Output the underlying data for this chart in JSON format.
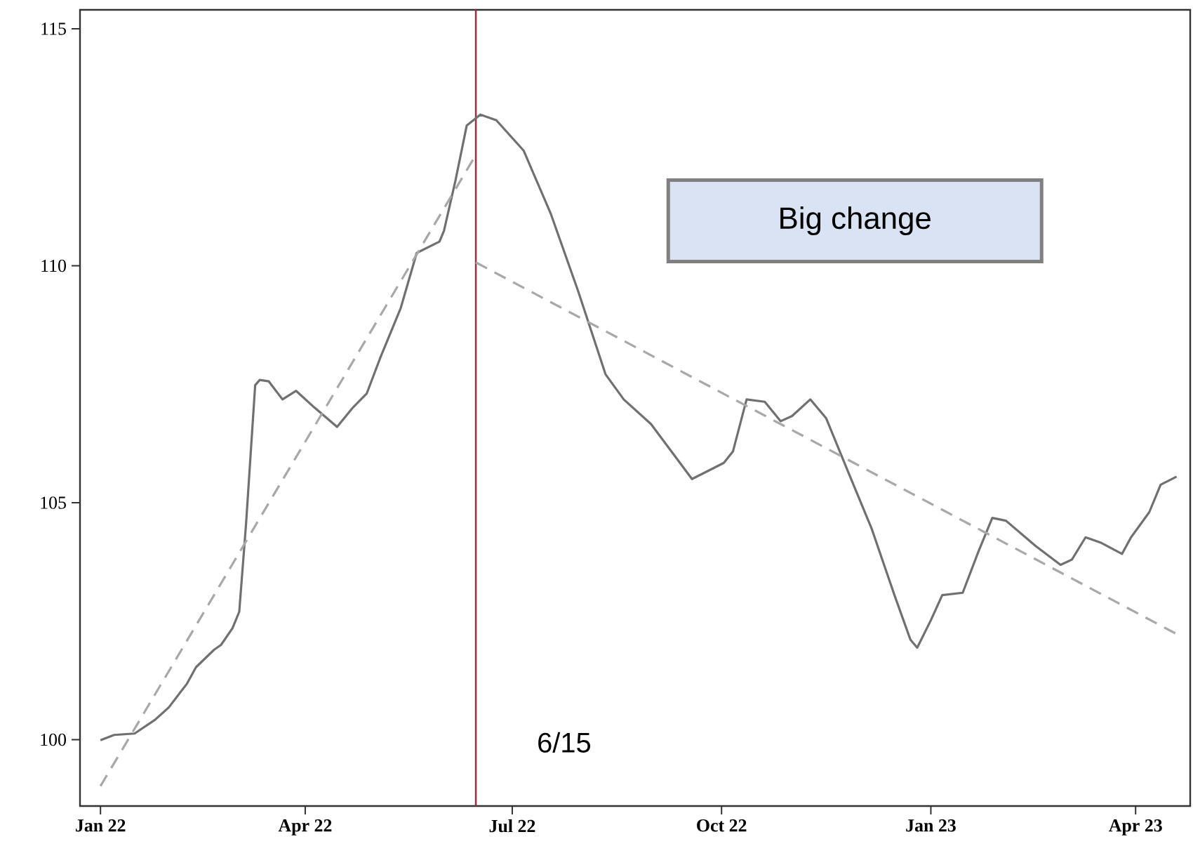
{
  "chart_data": {
    "type": "line",
    "xlim": [
      "2021-12-23",
      "2023-04-25"
    ],
    "ylim": [
      98.6,
      115.4
    ],
    "xticks": [
      {
        "value": "2022-01-01",
        "label": "Jan 22"
      },
      {
        "value": "2022-04-01",
        "label": "Apr 22"
      },
      {
        "value": "2022-07-01",
        "label": "Jul 22"
      },
      {
        "value": "2022-10-01",
        "label": "Oct 22"
      },
      {
        "value": "2023-01-01",
        "label": "Jan 23"
      },
      {
        "value": "2023-04-01",
        "label": "Apr 23"
      }
    ],
    "yticks": [
      100,
      105,
      110,
      115
    ],
    "series": [
      {
        "color": "#707070",
        "line_style": "solid",
        "x": [
          "2022-01-01",
          "2022-01-07",
          "2022-01-16",
          "2022-01-25",
          "2022-01-31",
          "2022-02-08",
          "2022-02-12",
          "2022-02-20",
          "2022-02-23",
          "2022-02-28",
          "2022-03-03",
          "2022-03-06",
          "2022-03-10",
          "2022-03-12",
          "2022-03-16",
          "2022-03-22",
          "2022-03-28",
          "2022-04-05",
          "2022-04-15",
          "2022-04-22",
          "2022-04-28",
          "2022-05-04",
          "2022-05-13",
          "2022-05-20",
          "2022-05-30",
          "2022-06-01",
          "2022-06-06",
          "2022-06-11",
          "2022-06-17",
          "2022-06-24",
          "2022-07-06",
          "2022-07-18",
          "2022-07-30",
          "2022-08-11",
          "2022-08-19",
          "2022-08-31",
          "2022-09-18",
          "2022-10-02",
          "2022-10-06",
          "2022-10-12",
          "2022-10-20",
          "2022-10-27",
          "2022-11-01",
          "2022-11-09",
          "2022-11-16",
          "2022-11-26",
          "2022-12-06",
          "2022-12-16",
          "2022-12-23",
          "2022-12-26",
          "2023-01-01",
          "2023-01-06",
          "2023-01-15",
          "2023-01-22",
          "2023-01-28",
          "2023-02-03",
          "2023-02-16",
          "2023-02-27",
          "2023-03-04",
          "2023-03-10",
          "2023-03-17",
          "2023-03-26",
          "2023-03-30",
          "2023-04-07",
          "2023-04-12",
          "2023-04-19"
        ],
        "values": [
          99.99,
          100.1,
          100.13,
          100.42,
          100.68,
          101.18,
          101.53,
          101.9,
          102.0,
          102.35,
          102.7,
          104.56,
          107.48,
          107.59,
          107.56,
          107.18,
          107.36,
          107.01,
          106.6,
          107.01,
          107.3,
          108.06,
          109.11,
          110.27,
          110.51,
          110.74,
          111.79,
          112.96,
          113.19,
          113.07,
          112.43,
          111.09,
          109.46,
          107.71,
          107.18,
          106.66,
          105.5,
          105.84,
          106.08,
          107.18,
          107.13,
          106.72,
          106.83,
          107.18,
          106.78,
          105.61,
          104.45,
          103.05,
          102.11,
          101.94,
          102.52,
          103.05,
          103.1,
          103.98,
          104.68,
          104.62,
          104.09,
          103.69,
          103.8,
          104.27,
          104.15,
          103.92,
          104.27,
          104.8,
          105.38,
          105.55
        ]
      },
      {
        "color": "#a8a8a8",
        "line_style": "dashed",
        "x": [
          "2022-01-01",
          "2022-06-14"
        ],
        "values": [
          99.02,
          112.26
        ]
      },
      {
        "color": "#a8a8a8",
        "line_style": "dashed",
        "x": [
          "2022-06-15",
          "2023-04-19"
        ],
        "values": [
          110.07,
          102.23
        ]
      }
    ],
    "ref_lines": [
      {
        "axis": "x",
        "value": "2022-06-15",
        "label": "6/15",
        "color": "#a03040"
      }
    ],
    "annotations": [
      "Big change"
    ]
  }
}
